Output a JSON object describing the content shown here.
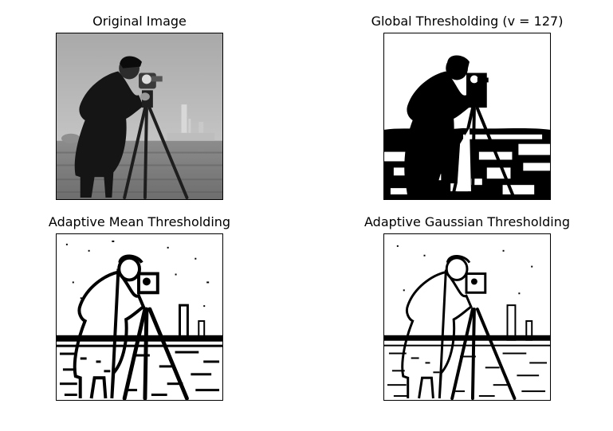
{
  "figure": {
    "panels": [
      {
        "id": "original",
        "title": "Original Image"
      },
      {
        "id": "global",
        "title": "Global Thresholding (v = 127)"
      },
      {
        "id": "mean",
        "title": "Adaptive Mean Thresholding"
      },
      {
        "id": "gauss",
        "title": "Adaptive Gaussian Thresholding"
      }
    ]
  },
  "colors": {
    "sky_gray": "#b4b4b4",
    "ground_gray": "#7a7a7a",
    "figure_dark": "#151515",
    "black": "#000000",
    "white": "#ffffff"
  }
}
